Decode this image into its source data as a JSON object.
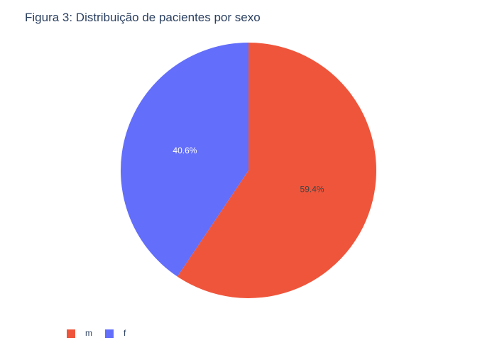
{
  "chart_data": {
    "type": "pie",
    "title": "Figura 3: Distribuição de pacientes por sexo",
    "categories": [
      "m",
      "f"
    ],
    "values": [
      59.4,
      40.6
    ],
    "value_labels": [
      "59.4%",
      "40.6%"
    ],
    "colors": [
      "#EF553B",
      "#636EFA"
    ],
    "label_colors": [
      "#444444",
      "#ffffff"
    ],
    "legend_position": "bottom-left",
    "direction": "clockwise",
    "start": "top"
  }
}
